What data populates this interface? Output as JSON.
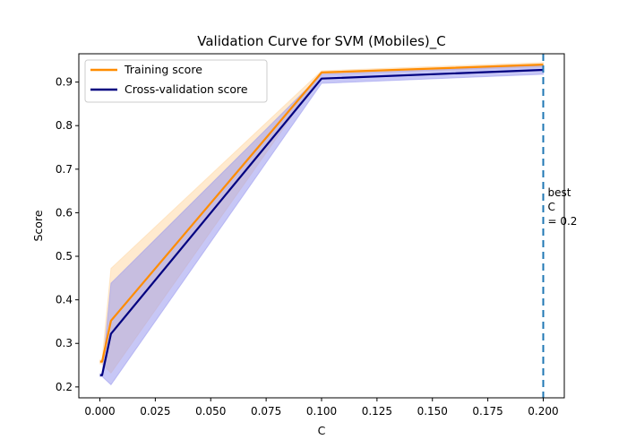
{
  "chart_data": {
    "type": "line",
    "title": "Validation Curve for SVM (Mobiles)_C",
    "xlabel": "C",
    "ylabel": "Score",
    "xlim": [
      -0.0095,
      0.2095
    ],
    "ylim": [
      0.175,
      0.965
    ],
    "x_ticks": [
      0.0,
      0.025,
      0.05,
      0.075,
      0.1,
      0.125,
      0.15,
      0.175,
      0.2
    ],
    "x_tick_labels": [
      "0.000",
      "0.025",
      "0.050",
      "0.075",
      "0.100",
      "0.125",
      "0.150",
      "0.175",
      "0.200"
    ],
    "y_ticks": [
      0.2,
      0.3,
      0.4,
      0.5,
      0.6,
      0.7,
      0.8,
      0.9
    ],
    "y_tick_labels": [
      "0.2",
      "0.3",
      "0.4",
      "0.5",
      "0.6",
      "0.7",
      "0.8",
      "0.9"
    ],
    "x": [
      0.0001,
      0.001,
      0.005,
      0.1,
      0.2
    ],
    "series": [
      {
        "name": "Training score",
        "color": "#ff8c00",
        "values": [
          0.258,
          0.258,
          0.352,
          0.922,
          0.94
        ],
        "band_upper": [
          0.262,
          0.262,
          0.472,
          0.926,
          0.945
        ],
        "band_lower": [
          0.253,
          0.253,
          0.232,
          0.918,
          0.935
        ],
        "band_color": "#ffd9a8"
      },
      {
        "name": "Cross-validation score",
        "color": "#000080",
        "values": [
          0.227,
          0.227,
          0.322,
          0.908,
          0.928
        ],
        "band_upper": [
          0.23,
          0.23,
          0.438,
          0.918,
          0.938
        ],
        "band_lower": [
          0.224,
          0.224,
          0.205,
          0.897,
          0.918
        ],
        "band_color": "#9999ee"
      }
    ],
    "vline": {
      "x": 0.2,
      "color": "#1f77b4",
      "style": "dashed"
    },
    "annotation": {
      "lines": [
        "best",
        "C",
        "= 0.2"
      ]
    },
    "legend": {
      "position": "upper-left"
    },
    "grid": false
  }
}
